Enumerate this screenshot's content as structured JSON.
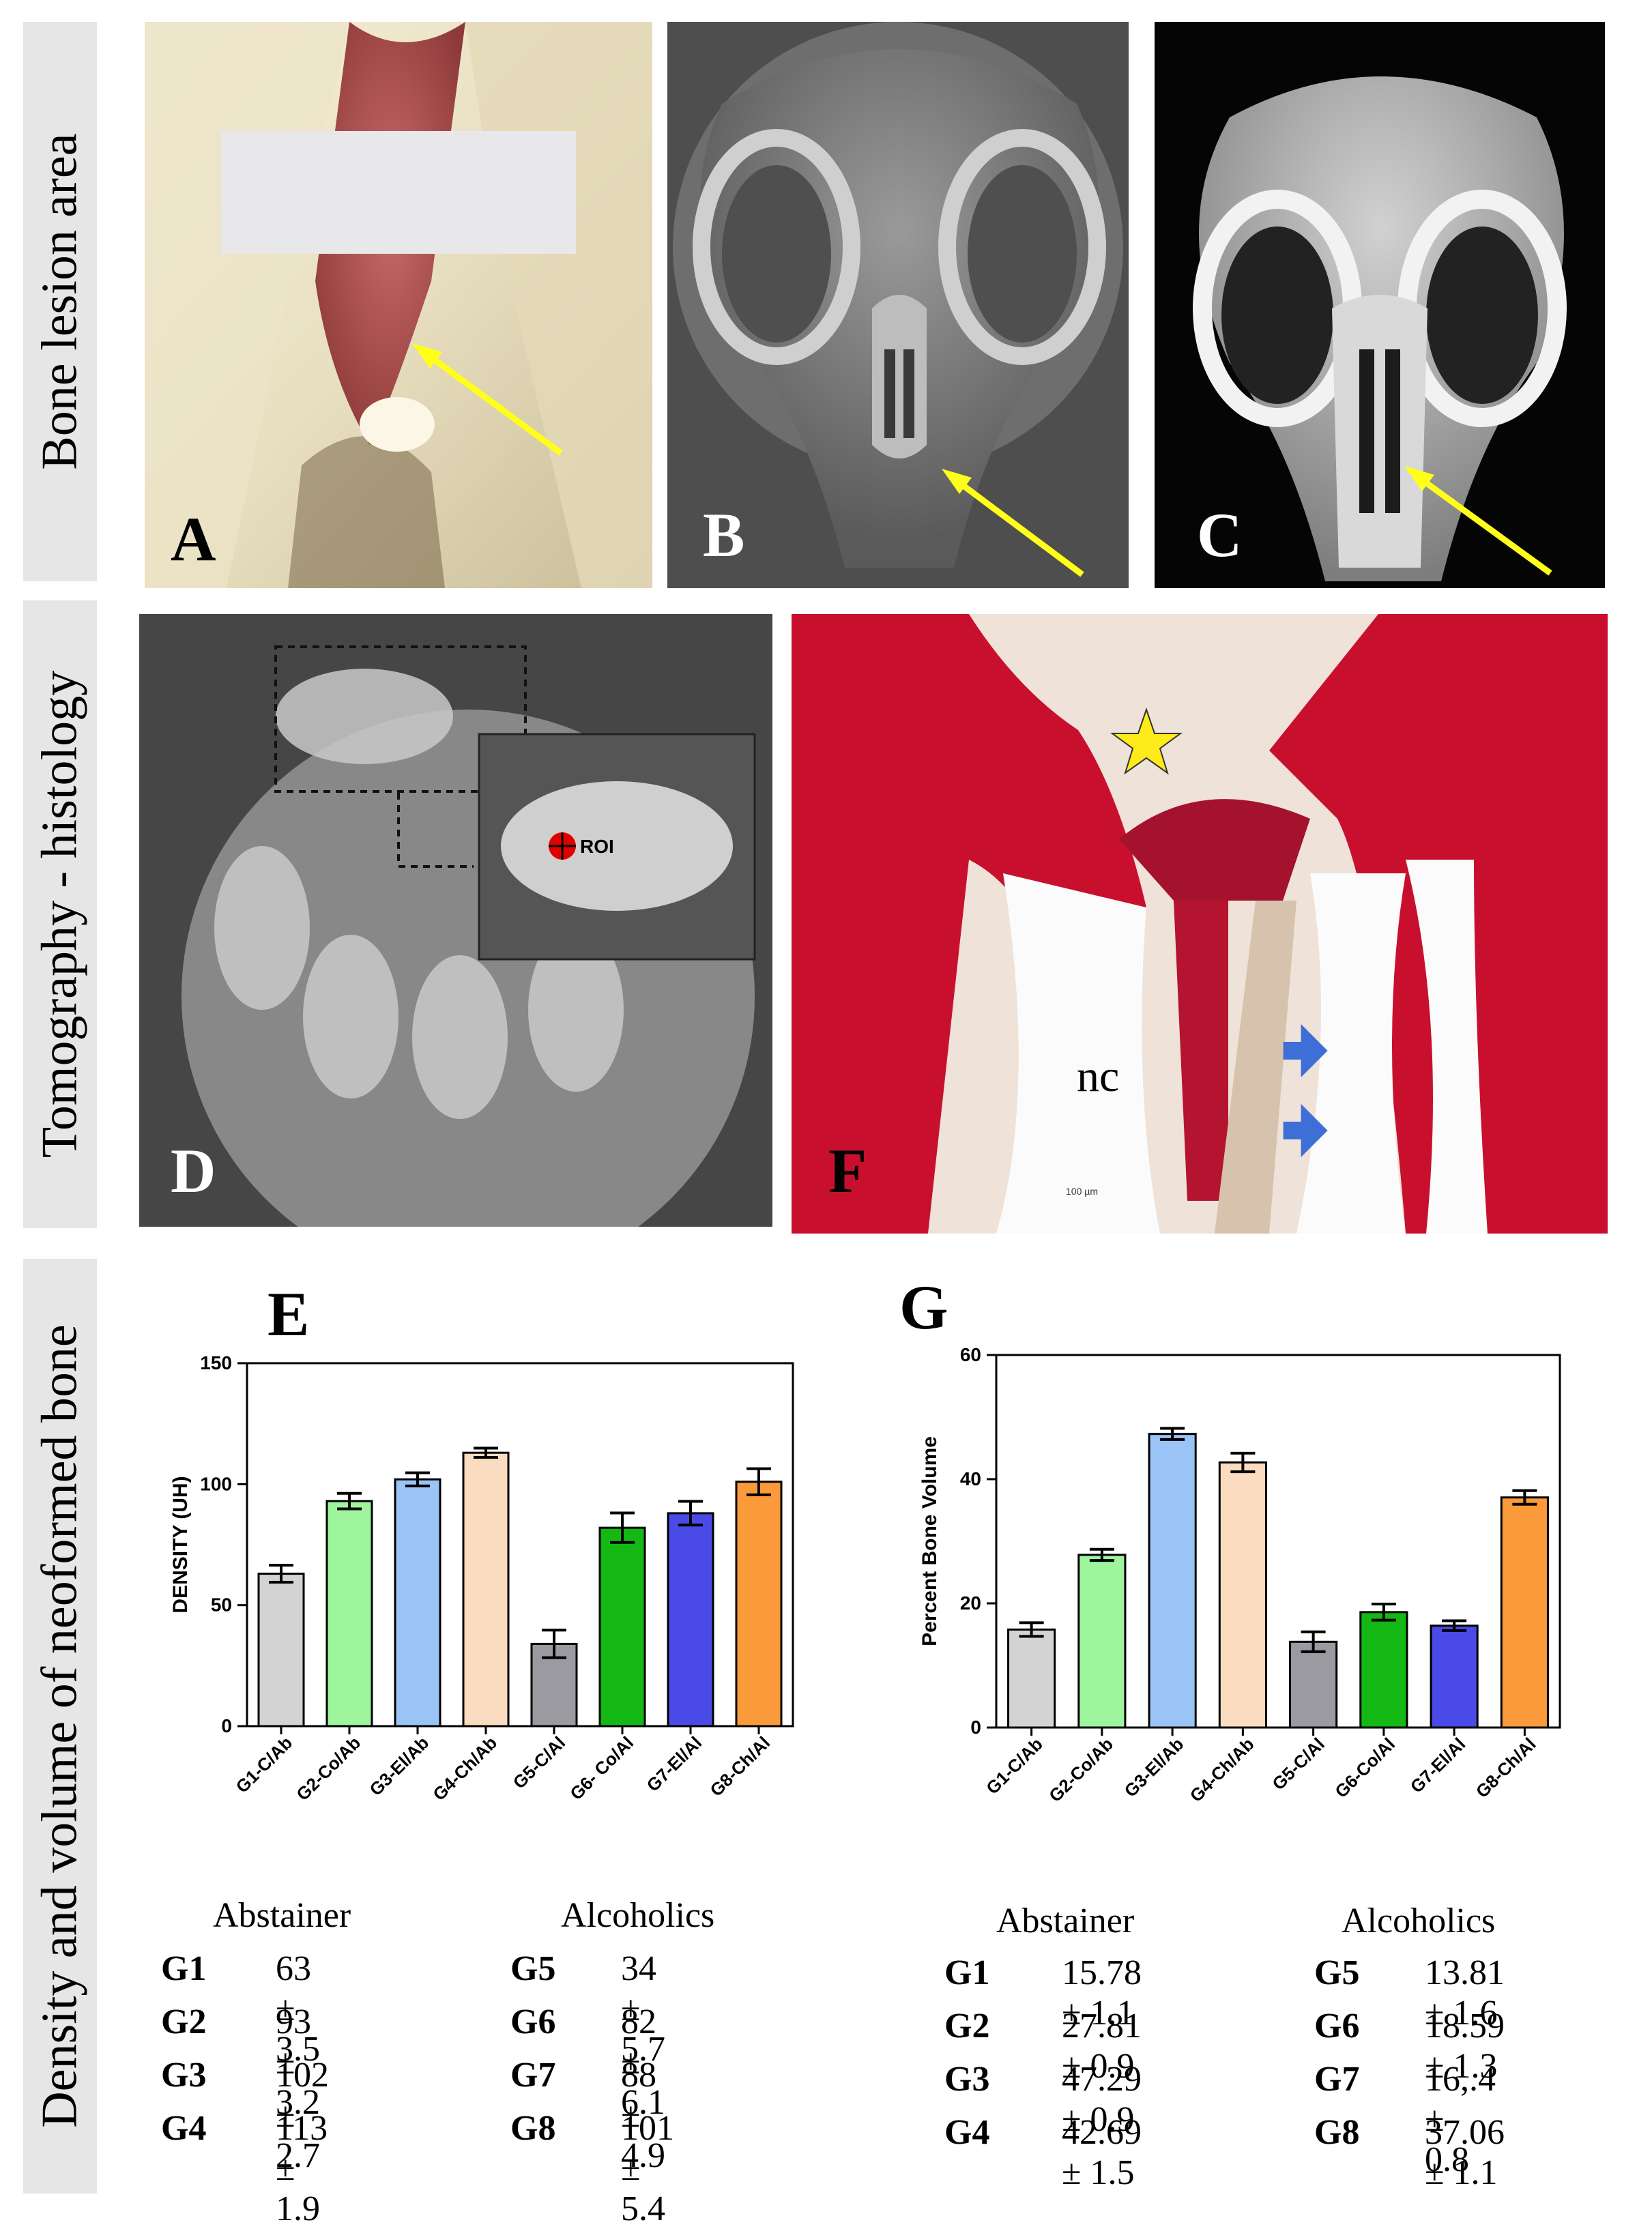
{
  "side_labels": {
    "row1": "Bone lesion area",
    "row2": "Tomography - histology",
    "row3": "Density and volume of neoformed bone"
  },
  "panels": {
    "A": "A",
    "B": "B",
    "C": "C",
    "D": "D",
    "F": "F",
    "E": "E",
    "G": "G"
  },
  "panel_d": {
    "roi_label": "ROI"
  },
  "panel_f": {
    "nc_label": "nc",
    "scale_label": "100 µm"
  },
  "colors": {
    "arrow_yellow": "#ffff1a",
    "arrow_blue": "#3d6fd6",
    "histology_red": "#c8102e",
    "G1": "#d3d3d3",
    "G2": "#9ef59e",
    "G3": "#99c4f5",
    "G4": "#fbdcc0",
    "G5": "#9a9aa0",
    "G6": "#14b814",
    "G7": "#4a4ae6",
    "G8": "#fb9a3a"
  },
  "chart_data": [
    {
      "type": "bar",
      "panel": "E",
      "categories": [
        "G1-C/Ab",
        "G2-Co/Ab",
        "G3-El/Ab",
        "G4-Ch/Ab",
        "G5-C/Al",
        "G6- Co/Al",
        "G7-El/Al",
        "G8-Ch/Al"
      ],
      "values": [
        63,
        93,
        102,
        113,
        34,
        82,
        88,
        101
      ],
      "errors": [
        3.5,
        3.2,
        2.7,
        1.9,
        5.7,
        6.1,
        4.9,
        5.4
      ],
      "ylabel": "DENSITY (UH)",
      "ylim": [
        0,
        150
      ],
      "yticks": [
        "0",
        "50",
        "100",
        "150"
      ],
      "grid": false
    },
    {
      "type": "bar",
      "panel": "G",
      "categories": [
        "G1-C/Ab",
        "G2-Co/Ab",
        "G3-El/Ab",
        "G4-Ch/Ab",
        "G5-C/Al",
        "G6-Co/Al",
        "G7-El/Al",
        "G8-Ch/Al"
      ],
      "values": [
        15.78,
        27.81,
        47.29,
        42.69,
        13.81,
        18.59,
        16.4,
        37.06
      ],
      "errors": [
        1.1,
        0.9,
        0.9,
        1.5,
        1.6,
        1.3,
        0.8,
        1.1
      ],
      "ylabel": "Percent Bone Volume",
      "ylim": [
        0,
        60
      ],
      "yticks": [
        "0",
        "20",
        "40",
        "60"
      ],
      "grid": false
    }
  ],
  "stats_e": {
    "abstainer_title": "Abstainer",
    "alcoholics_title": "Alcoholics",
    "rows": [
      {
        "g_left": "G1",
        "v_left": "63 ± 3.5",
        "g_right": "G5",
        "v_right": "34 ± 5.7"
      },
      {
        "g_left": "G2",
        "v_left": "93 ± 3.2",
        "g_right": "G6",
        "v_right": "82 ± 6.1"
      },
      {
        "g_left": "G3",
        "v_left": "102 ± 2.7",
        "g_right": "G7",
        "v_right": "88 ± 4.9"
      },
      {
        "g_left": "G4",
        "v_left": "113 ± 1.9",
        "g_right": "G8",
        "v_right": "101 ± 5.4"
      }
    ]
  },
  "stats_g": {
    "abstainer_title": "Abstainer",
    "alcoholics_title": "Alcoholics",
    "rows": [
      {
        "g_left": "G1",
        "v_left": "15.78 ± 1.1",
        "g_right": "G5",
        "v_right": "13.81 ± 1.6"
      },
      {
        "g_left": "G2",
        "v_left": "27.81 ± 0.9",
        "g_right": "G6",
        "v_right": "18.59 ± 1.3"
      },
      {
        "g_left": "G3",
        "v_left": "47.29 ± 0.9",
        "g_right": "G7",
        "v_right": "16,.4 ± 0.8"
      },
      {
        "g_left": "G4",
        "v_left": "42.69 ± 1.5",
        "g_right": "G8",
        "v_right": "37.06 ± 1.1"
      }
    ]
  }
}
